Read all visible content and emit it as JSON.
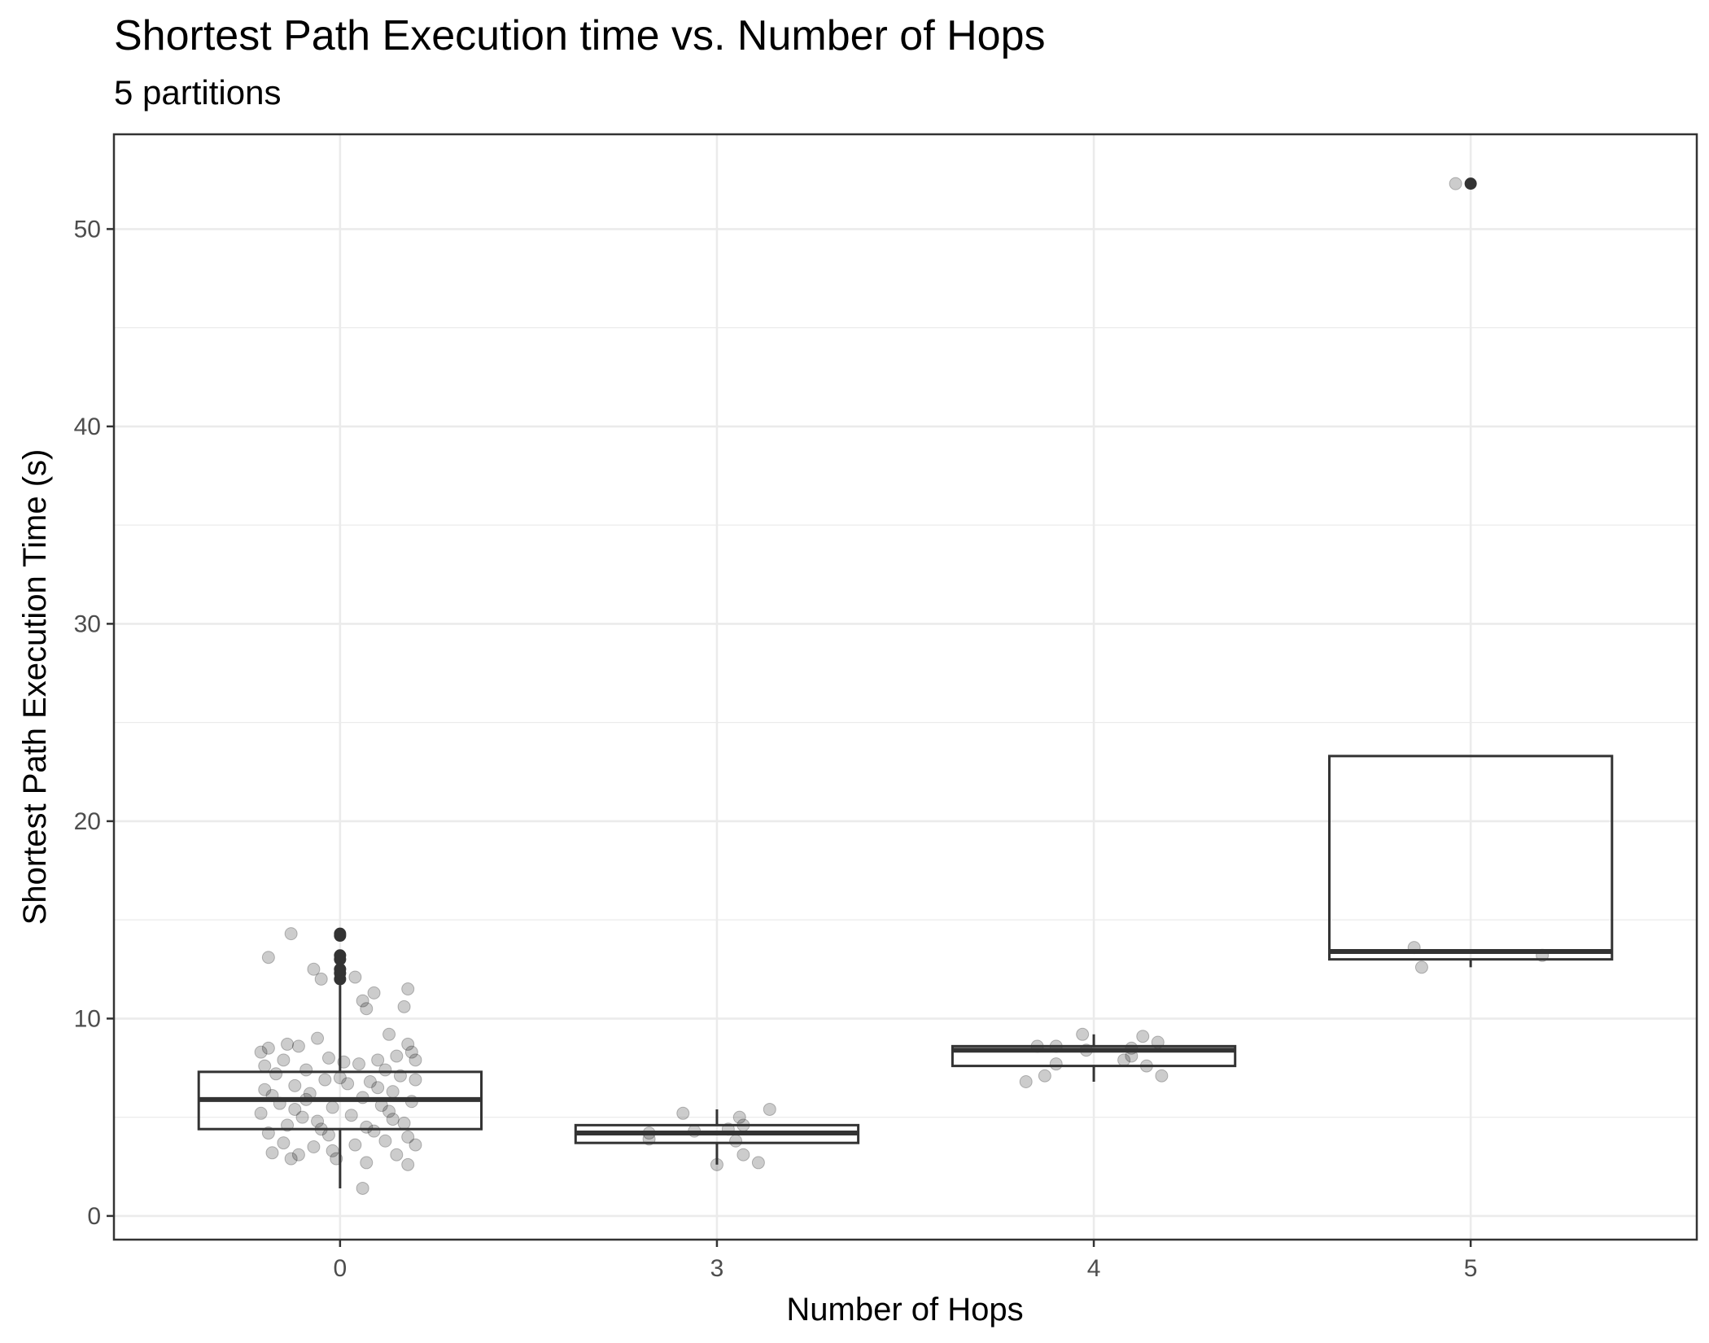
{
  "chart_data": {
    "type": "box",
    "title": "Shortest Path Execution time vs. Number of Hops",
    "subtitle": "5 partitions",
    "xlabel": "Number of Hops",
    "ylabel": "Shortest Path Execution Time (s)",
    "categories": [
      "0",
      "3",
      "4",
      "5"
    ],
    "ylim": [
      -1.2,
      54.8
    ],
    "y_ticks": [
      0,
      10,
      20,
      30,
      40,
      50
    ],
    "grid": true,
    "colors": {
      "box_line": "#333333",
      "point": "#000000",
      "grid": "#ebebeb",
      "panel_border": "#333333"
    },
    "boxes": [
      {
        "category": "0",
        "whisker_low": 1.4,
        "q1": 4.4,
        "median": 5.9,
        "q3": 7.3,
        "whisker_high": 11.7,
        "outliers": [
          12.0,
          12.3,
          12.5,
          13.0,
          13.2,
          14.2,
          14.3
        ]
      },
      {
        "category": "3",
        "whisker_low": 2.6,
        "q1": 3.7,
        "median": 4.2,
        "q3": 4.6,
        "whisker_high": 5.4,
        "outliers": []
      },
      {
        "category": "4",
        "whisker_low": 6.8,
        "q1": 7.6,
        "median": 8.4,
        "q3": 8.6,
        "whisker_high": 9.2,
        "outliers": []
      },
      {
        "category": "5",
        "whisker_low": 12.6,
        "q1": 13.0,
        "median": 13.4,
        "q3": 23.3,
        "whisker_high": 23.3,
        "outliers": [
          52.3
        ]
      }
    ],
    "points": [
      {
        "category": "0",
        "jitter": -0.13,
        "y": 14.3
      },
      {
        "category": "0",
        "jitter": -0.19,
        "y": 13.1
      },
      {
        "category": "0",
        "jitter": -0.07,
        "y": 12.5
      },
      {
        "category": "0",
        "jitter": 0.04,
        "y": 12.1
      },
      {
        "category": "0",
        "jitter": 0.06,
        "y": 10.9
      },
      {
        "category": "0",
        "jitter": 0.09,
        "y": 11.3
      },
      {
        "category": "0",
        "jitter": 0.07,
        "y": 10.5
      },
      {
        "category": "0",
        "jitter": 0.17,
        "y": 10.6
      },
      {
        "category": "0",
        "jitter": 0.18,
        "y": 11.5
      },
      {
        "category": "0",
        "jitter": -0.05,
        "y": 12.0
      },
      {
        "category": "0",
        "jitter": 0.13,
        "y": 9.2
      },
      {
        "category": "0",
        "jitter": -0.06,
        "y": 9.0
      },
      {
        "category": "0",
        "jitter": -0.19,
        "y": 8.5
      },
      {
        "category": "0",
        "jitter": -0.14,
        "y": 8.7
      },
      {
        "category": "0",
        "jitter": -0.11,
        "y": 8.6
      },
      {
        "category": "0",
        "jitter": 0.18,
        "y": 8.7
      },
      {
        "category": "0",
        "jitter": 0.19,
        "y": 8.3
      },
      {
        "category": "0",
        "jitter": -0.21,
        "y": 8.3
      },
      {
        "category": "0",
        "jitter": -0.2,
        "y": 7.6
      },
      {
        "category": "0",
        "jitter": -0.15,
        "y": 7.9
      },
      {
        "category": "0",
        "jitter": 0.15,
        "y": 8.1
      },
      {
        "category": "0",
        "jitter": 0.2,
        "y": 7.9
      },
      {
        "category": "0",
        "jitter": -0.03,
        "y": 8.0
      },
      {
        "category": "0",
        "jitter": 0.01,
        "y": 7.8
      },
      {
        "category": "0",
        "jitter": 0.05,
        "y": 7.7
      },
      {
        "category": "0",
        "jitter": 0.1,
        "y": 7.9
      },
      {
        "category": "0",
        "jitter": -0.09,
        "y": 7.4
      },
      {
        "category": "0",
        "jitter": -0.17,
        "y": 7.2
      },
      {
        "category": "0",
        "jitter": 0.12,
        "y": 7.4
      },
      {
        "category": "0",
        "jitter": 0.16,
        "y": 7.1
      },
      {
        "category": "0",
        "jitter": -0.2,
        "y": 6.4
      },
      {
        "category": "0",
        "jitter": -0.12,
        "y": 6.6
      },
      {
        "category": "0",
        "jitter": -0.04,
        "y": 6.9
      },
      {
        "category": "0",
        "jitter": 0.02,
        "y": 6.7
      },
      {
        "category": "0",
        "jitter": 0.08,
        "y": 6.8
      },
      {
        "category": "0",
        "jitter": 0.2,
        "y": 6.9
      },
      {
        "category": "0",
        "jitter": -0.18,
        "y": 6.1
      },
      {
        "category": "0",
        "jitter": -0.08,
        "y": 6.2
      },
      {
        "category": "0",
        "jitter": 0.06,
        "y": 6.0
      },
      {
        "category": "0",
        "jitter": 0.14,
        "y": 6.3
      },
      {
        "category": "0",
        "jitter": -0.16,
        "y": 5.7
      },
      {
        "category": "0",
        "jitter": -0.02,
        "y": 5.5
      },
      {
        "category": "0",
        "jitter": 0.11,
        "y": 5.6
      },
      {
        "category": "0",
        "jitter": 0.19,
        "y": 5.8
      },
      {
        "category": "0",
        "jitter": -0.21,
        "y": 5.2
      },
      {
        "category": "0",
        "jitter": -0.1,
        "y": 5.0
      },
      {
        "category": "0",
        "jitter": 0.03,
        "y": 5.1
      },
      {
        "category": "0",
        "jitter": 0.13,
        "y": 5.3
      },
      {
        "category": "0",
        "jitter": -0.14,
        "y": 4.6
      },
      {
        "category": "0",
        "jitter": -0.06,
        "y": 4.8
      },
      {
        "category": "0",
        "jitter": 0.07,
        "y": 4.5
      },
      {
        "category": "0",
        "jitter": 0.17,
        "y": 4.7
      },
      {
        "category": "0",
        "jitter": -0.19,
        "y": 4.2
      },
      {
        "category": "0",
        "jitter": -0.03,
        "y": 4.1
      },
      {
        "category": "0",
        "jitter": 0.09,
        "y": 4.3
      },
      {
        "category": "0",
        "jitter": 0.18,
        "y": 4.0
      },
      {
        "category": "0",
        "jitter": -0.15,
        "y": 3.7
      },
      {
        "category": "0",
        "jitter": -0.07,
        "y": 3.5
      },
      {
        "category": "0",
        "jitter": 0.04,
        "y": 3.6
      },
      {
        "category": "0",
        "jitter": 0.12,
        "y": 3.8
      },
      {
        "category": "0",
        "jitter": 0.2,
        "y": 3.6
      },
      {
        "category": "0",
        "jitter": -0.18,
        "y": 3.2
      },
      {
        "category": "0",
        "jitter": -0.11,
        "y": 3.1
      },
      {
        "category": "0",
        "jitter": -0.02,
        "y": 3.3
      },
      {
        "category": "0",
        "jitter": 0.15,
        "y": 3.1
      },
      {
        "category": "0",
        "jitter": -0.13,
        "y": 2.9
      },
      {
        "category": "0",
        "jitter": -0.01,
        "y": 2.9
      },
      {
        "category": "0",
        "jitter": 0.07,
        "y": 2.7
      },
      {
        "category": "0",
        "jitter": 0.18,
        "y": 2.6
      },
      {
        "category": "0",
        "jitter": 0.06,
        "y": 1.4
      },
      {
        "category": "0",
        "jitter": -0.09,
        "y": 5.9
      },
      {
        "category": "0",
        "jitter": 0.1,
        "y": 6.5
      },
      {
        "category": "0",
        "jitter": -0.05,
        "y": 4.4
      },
      {
        "category": "0",
        "jitter": 0.0,
        "y": 7.0
      },
      {
        "category": "0",
        "jitter": -0.12,
        "y": 5.4
      },
      {
        "category": "0",
        "jitter": 0.14,
        "y": 4.9
      },
      {
        "category": "3",
        "jitter": -0.18,
        "y": 4.2
      },
      {
        "category": "3",
        "jitter": -0.09,
        "y": 5.2
      },
      {
        "category": "3",
        "jitter": -0.06,
        "y": 4.3
      },
      {
        "category": "3",
        "jitter": 0.06,
        "y": 5.0
      },
      {
        "category": "3",
        "jitter": 0.07,
        "y": 4.6
      },
      {
        "category": "3",
        "jitter": 0.14,
        "y": 5.4
      },
      {
        "category": "3",
        "jitter": 0.05,
        "y": 3.8
      },
      {
        "category": "3",
        "jitter": -0.18,
        "y": 3.9
      },
      {
        "category": "3",
        "jitter": -0.0,
        "y": 2.6
      },
      {
        "category": "3",
        "jitter": 0.07,
        "y": 3.1
      },
      {
        "category": "3",
        "jitter": 0.11,
        "y": 2.7
      },
      {
        "category": "3",
        "jitter": 0.03,
        "y": 4.4
      },
      {
        "category": "4",
        "jitter": -0.18,
        "y": 6.8
      },
      {
        "category": "4",
        "jitter": -0.13,
        "y": 7.1
      },
      {
        "category": "4",
        "jitter": -0.1,
        "y": 7.7
      },
      {
        "category": "4",
        "jitter": -0.15,
        "y": 8.6
      },
      {
        "category": "4",
        "jitter": -0.1,
        "y": 8.6
      },
      {
        "category": "4",
        "jitter": -0.03,
        "y": 9.2
      },
      {
        "category": "4",
        "jitter": -0.02,
        "y": 8.4
      },
      {
        "category": "4",
        "jitter": 0.1,
        "y": 8.5
      },
      {
        "category": "4",
        "jitter": 0.13,
        "y": 9.1
      },
      {
        "category": "4",
        "jitter": 0.17,
        "y": 8.8
      },
      {
        "category": "4",
        "jitter": 0.08,
        "y": 7.9
      },
      {
        "category": "4",
        "jitter": 0.1,
        "y": 8.1
      },
      {
        "category": "4",
        "jitter": 0.14,
        "y": 7.6
      },
      {
        "category": "4",
        "jitter": 0.18,
        "y": 7.1
      },
      {
        "category": "5",
        "jitter": -0.04,
        "y": 52.3
      },
      {
        "category": "5",
        "jitter": -0.15,
        "y": 13.6
      },
      {
        "category": "5",
        "jitter": -0.13,
        "y": 12.6
      },
      {
        "category": "5",
        "jitter": 0.19,
        "y": 13.2
      }
    ]
  }
}
